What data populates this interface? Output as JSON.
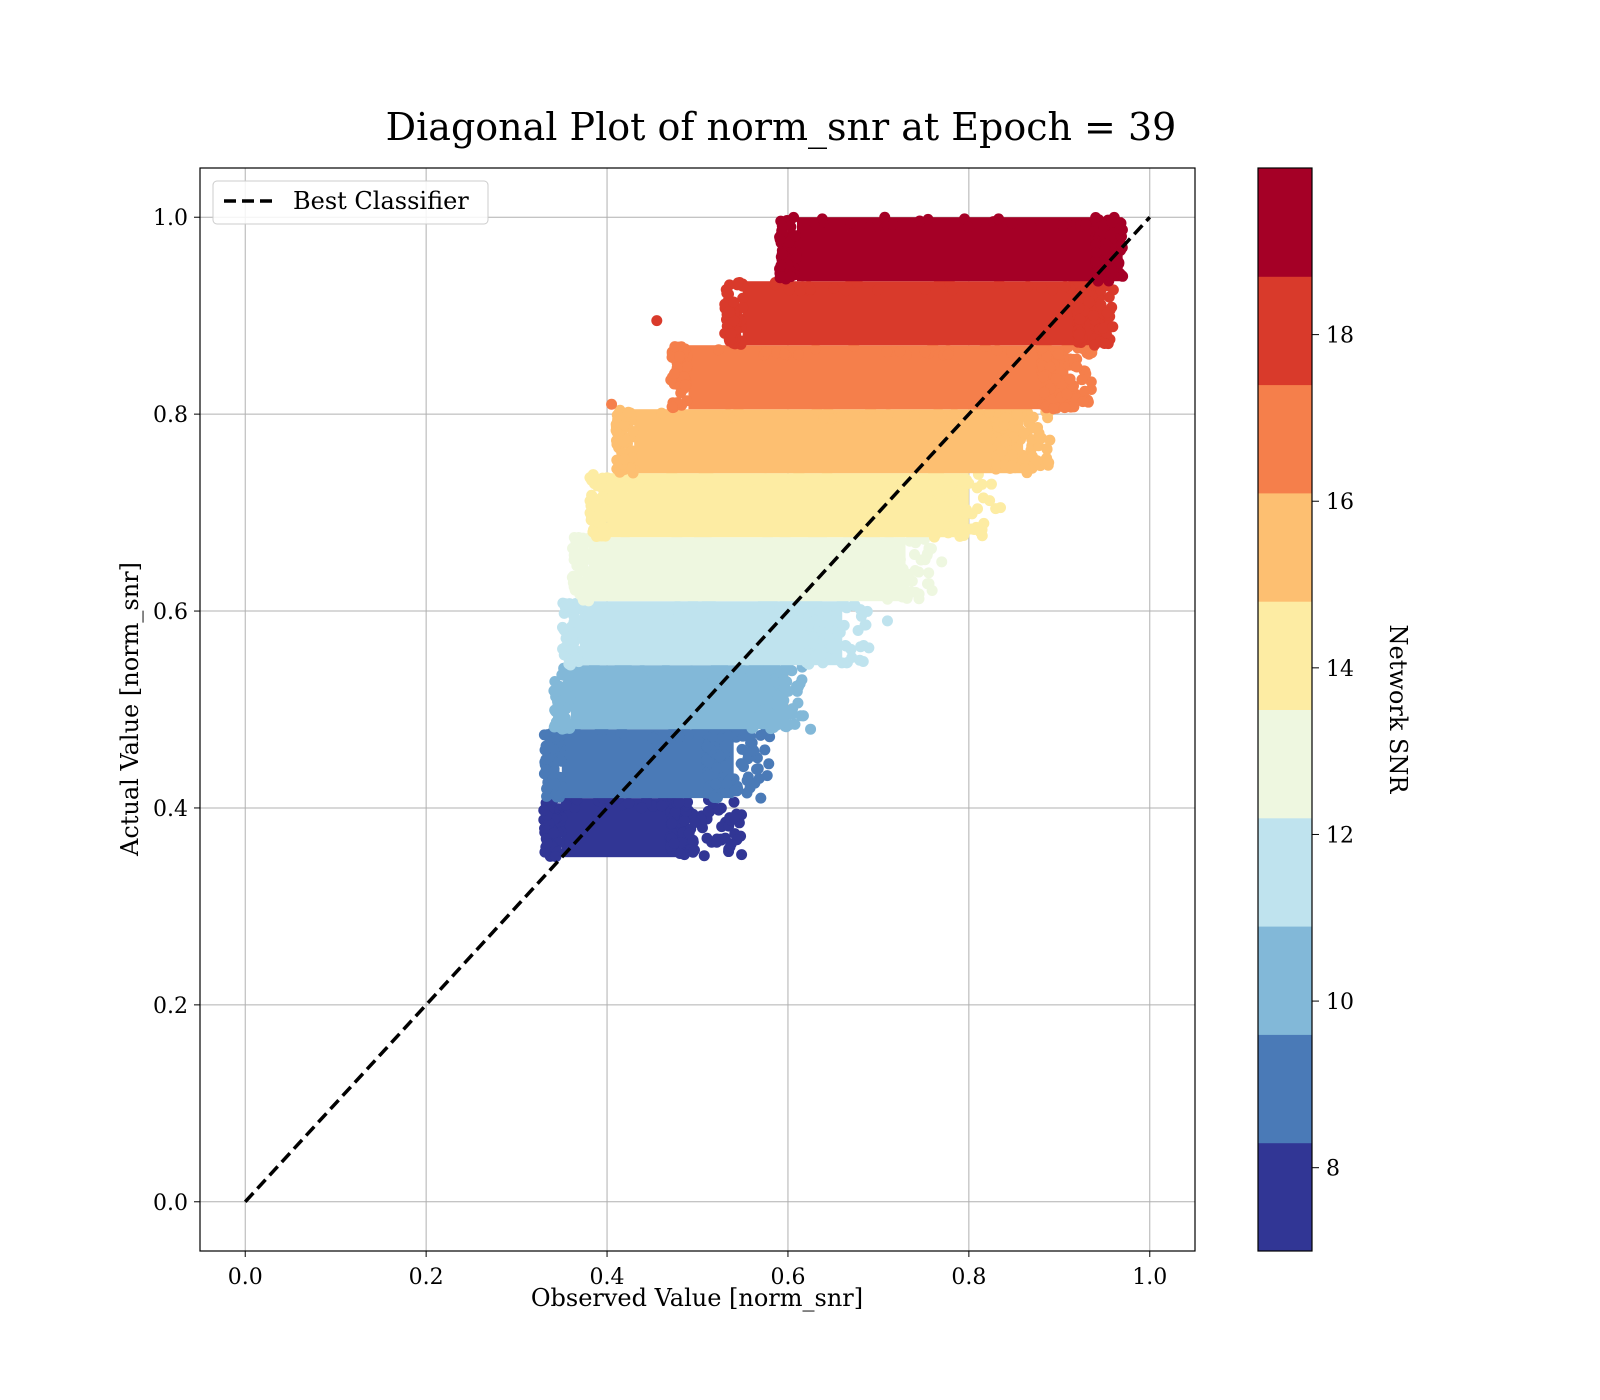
{
  "chart_data": {
    "type": "scatter",
    "title": "Diagonal Plot of norm_snr at Epoch = 39",
    "xlabel": "Observed Value [norm_snr]",
    "ylabel": "Actual Value [norm_snr]",
    "xlim": [
      -0.05,
      1.05
    ],
    "ylim": [
      -0.05,
      1.05
    ],
    "xticks": [
      "0.0",
      "0.2",
      "0.4",
      "0.6",
      "0.8",
      "1.0"
    ],
    "yticks": [
      "0.0",
      "0.2",
      "0.4",
      "0.6",
      "0.8",
      "1.0"
    ],
    "grid": true,
    "legend": {
      "placement": "top-left",
      "entries": [
        "Best Classifier"
      ]
    },
    "reference_line": {
      "name": "Best Classifier",
      "x": [
        0.0,
        1.0
      ],
      "y": [
        0.0,
        1.0
      ],
      "style": "dashed",
      "color": "#000000"
    },
    "colorbar": {
      "label": "Network SNR",
      "range": [
        7.0,
        20.0
      ],
      "ticks": [
        "8",
        "10",
        "12",
        "14",
        "16",
        "18"
      ],
      "colors": [
        "#313695",
        "#4a7ab7",
        "#82b8d8",
        "#bfe3ee",
        "#eef7e0",
        "#fdeca3",
        "#fdbf71",
        "#f57f4b",
        "#d93a2b",
        "#a50026"
      ]
    },
    "bands": [
      {
        "y": [
          0.35,
          0.41
        ],
        "x_core": [
          0.35,
          0.49
        ],
        "scatter_x": [
          0.48,
          0.56
        ],
        "color": "#313695"
      },
      {
        "y": [
          0.41,
          0.48
        ],
        "x_core": [
          0.35,
          0.54
        ],
        "scatter_x": [
          0.52,
          0.59
        ],
        "color": "#4a7ab7"
      },
      {
        "y": [
          0.48,
          0.545
        ],
        "x_core": [
          0.36,
          0.6
        ],
        "scatter_x": [
          0.57,
          0.63
        ],
        "color": "#82b8d8"
      },
      {
        "y": [
          0.545,
          0.61
        ],
        "x_core": [
          0.37,
          0.66
        ],
        "scatter_x": [
          0.63,
          0.7
        ],
        "color": "#bfe3ee"
      },
      {
        "y": [
          0.61,
          0.675
        ],
        "x_core": [
          0.38,
          0.73
        ],
        "scatter_x": [
          0.7,
          0.77
        ],
        "color": "#eef7e0"
      },
      {
        "y": [
          0.675,
          0.74
        ],
        "x_core": [
          0.4,
          0.8
        ],
        "scatter_x": [
          0.77,
          0.84
        ],
        "color": "#fdeca3"
      },
      {
        "y": [
          0.74,
          0.805
        ],
        "x_core": [
          0.43,
          0.86
        ],
        "scatter_x": [
          0.84,
          0.9
        ],
        "color": "#fdbf71"
      },
      {
        "y": [
          0.805,
          0.87
        ],
        "x_core": [
          0.49,
          0.91
        ],
        "scatter_x": [
          0.89,
          0.95
        ],
        "color": "#f57f4b"
      },
      {
        "y": [
          0.87,
          0.935
        ],
        "x_core": [
          0.55,
          0.95
        ],
        "scatter_x": [
          0.93,
          0.97
        ],
        "color": "#d93a2b"
      },
      {
        "y": [
          0.935,
          1.0
        ],
        "x_core": [
          0.61,
          0.97
        ],
        "scatter_x": [
          0.95,
          0.98
        ],
        "color": "#a50026"
      }
    ],
    "outliers": [
      {
        "x": 0.455,
        "y": 0.895,
        "color": "#d93a2b"
      },
      {
        "x": 0.405,
        "y": 0.81,
        "color": "#f57f4b"
      },
      {
        "x": 0.395,
        "y": 0.735,
        "color": "#fdeca3"
      },
      {
        "x": 0.625,
        "y": 0.48,
        "color": "#82b8d8"
      },
      {
        "x": 0.57,
        "y": 0.41,
        "color": "#4a7ab7"
      },
      {
        "x": 0.495,
        "y": 0.355,
        "color": "#313695"
      },
      {
        "x": 0.71,
        "y": 0.59,
        "color": "#bfe3ee"
      },
      {
        "x": 0.77,
        "y": 0.65,
        "color": "#eef7e0"
      },
      {
        "x": 0.835,
        "y": 0.705,
        "color": "#fdeca3"
      },
      {
        "x": 0.925,
        "y": 0.835,
        "color": "#f57f4b"
      },
      {
        "x": 0.97,
        "y": 0.94,
        "color": "#a50026"
      }
    ]
  }
}
